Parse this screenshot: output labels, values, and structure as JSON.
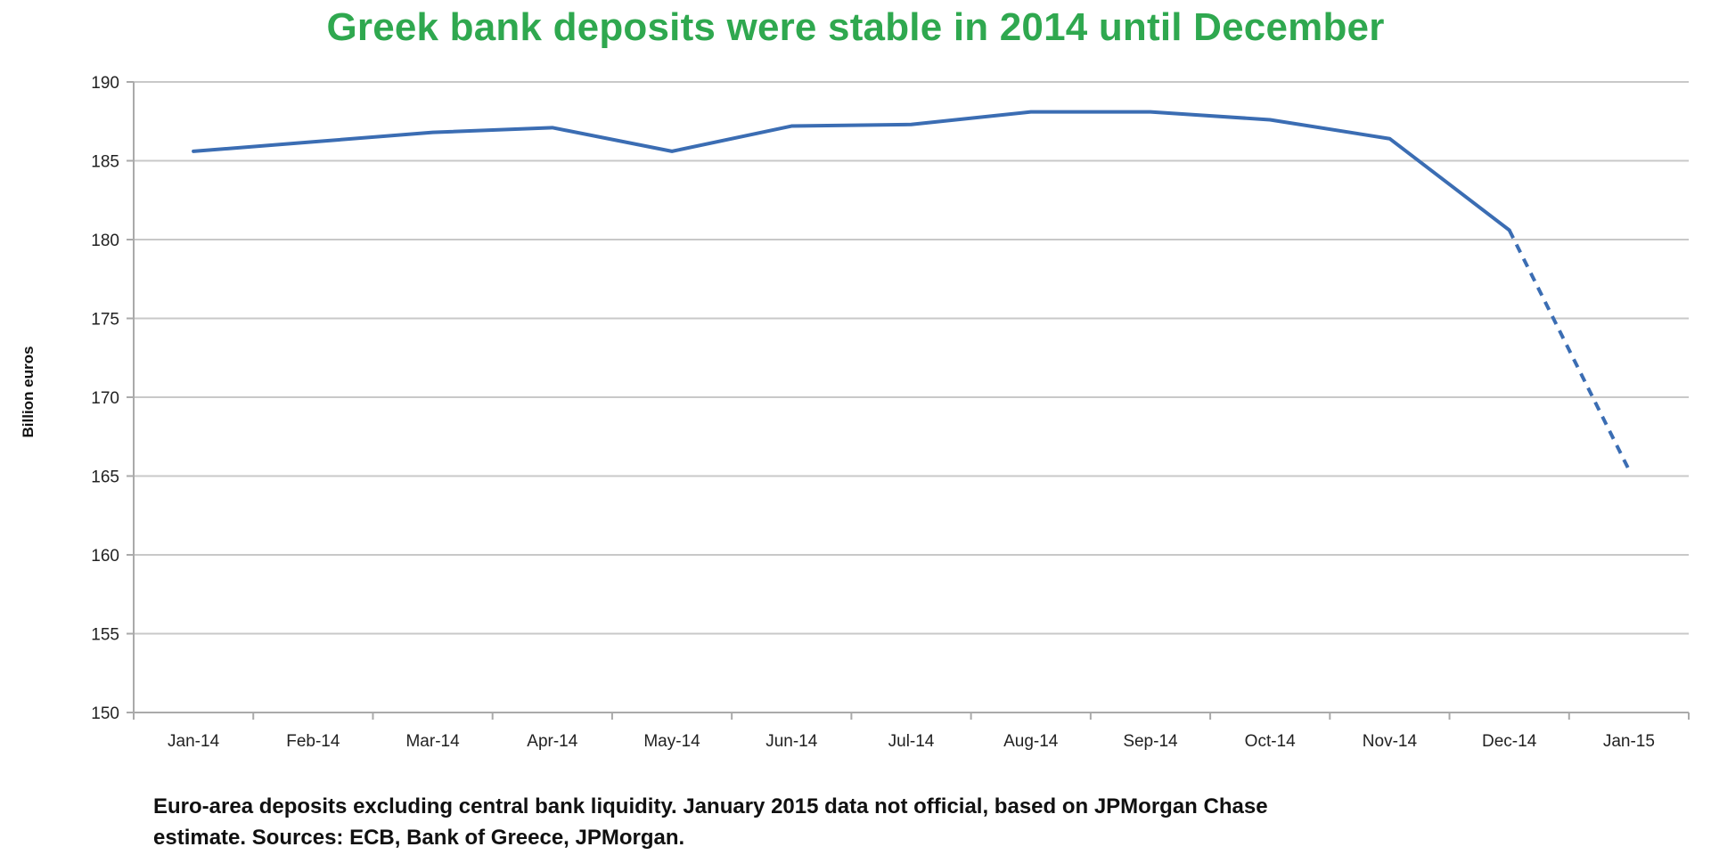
{
  "chart_data": {
    "type": "line",
    "title": "Greek bank deposits were stable in 2014 until December",
    "ylabel": "Billion euros",
    "xlabel": "",
    "categories": [
      "Jan-14",
      "Feb-14",
      "Mar-14",
      "Apr-14",
      "May-14",
      "Jun-14",
      "Jul-14",
      "Aug-14",
      "Sep-14",
      "Oct-14",
      "Nov-14",
      "Dec-14",
      "Jan-15"
    ],
    "series": [
      {
        "values": [
          185.6,
          186.2,
          186.8,
          187.1,
          185.6,
          187.2,
          187.3,
          188.1,
          188.1,
          187.6,
          186.4,
          180.6,
          165.4
        ],
        "dashed_from_index": 11
      }
    ],
    "ylim": [
      150,
      190
    ],
    "yticks": [
      "150",
      "155",
      "160",
      "165",
      "170",
      "175",
      "180",
      "185",
      "190"
    ],
    "grid": true,
    "line_color": "#3b6db3",
    "title_color": "#2fa84f"
  },
  "footnote": {
    "line1": "Euro-area deposits excluding central bank liquidity. January 2015 data not official, based on JPMorgan Chase",
    "line2": "estimate. Sources: ECB, Bank of Greece, JPMorgan."
  }
}
